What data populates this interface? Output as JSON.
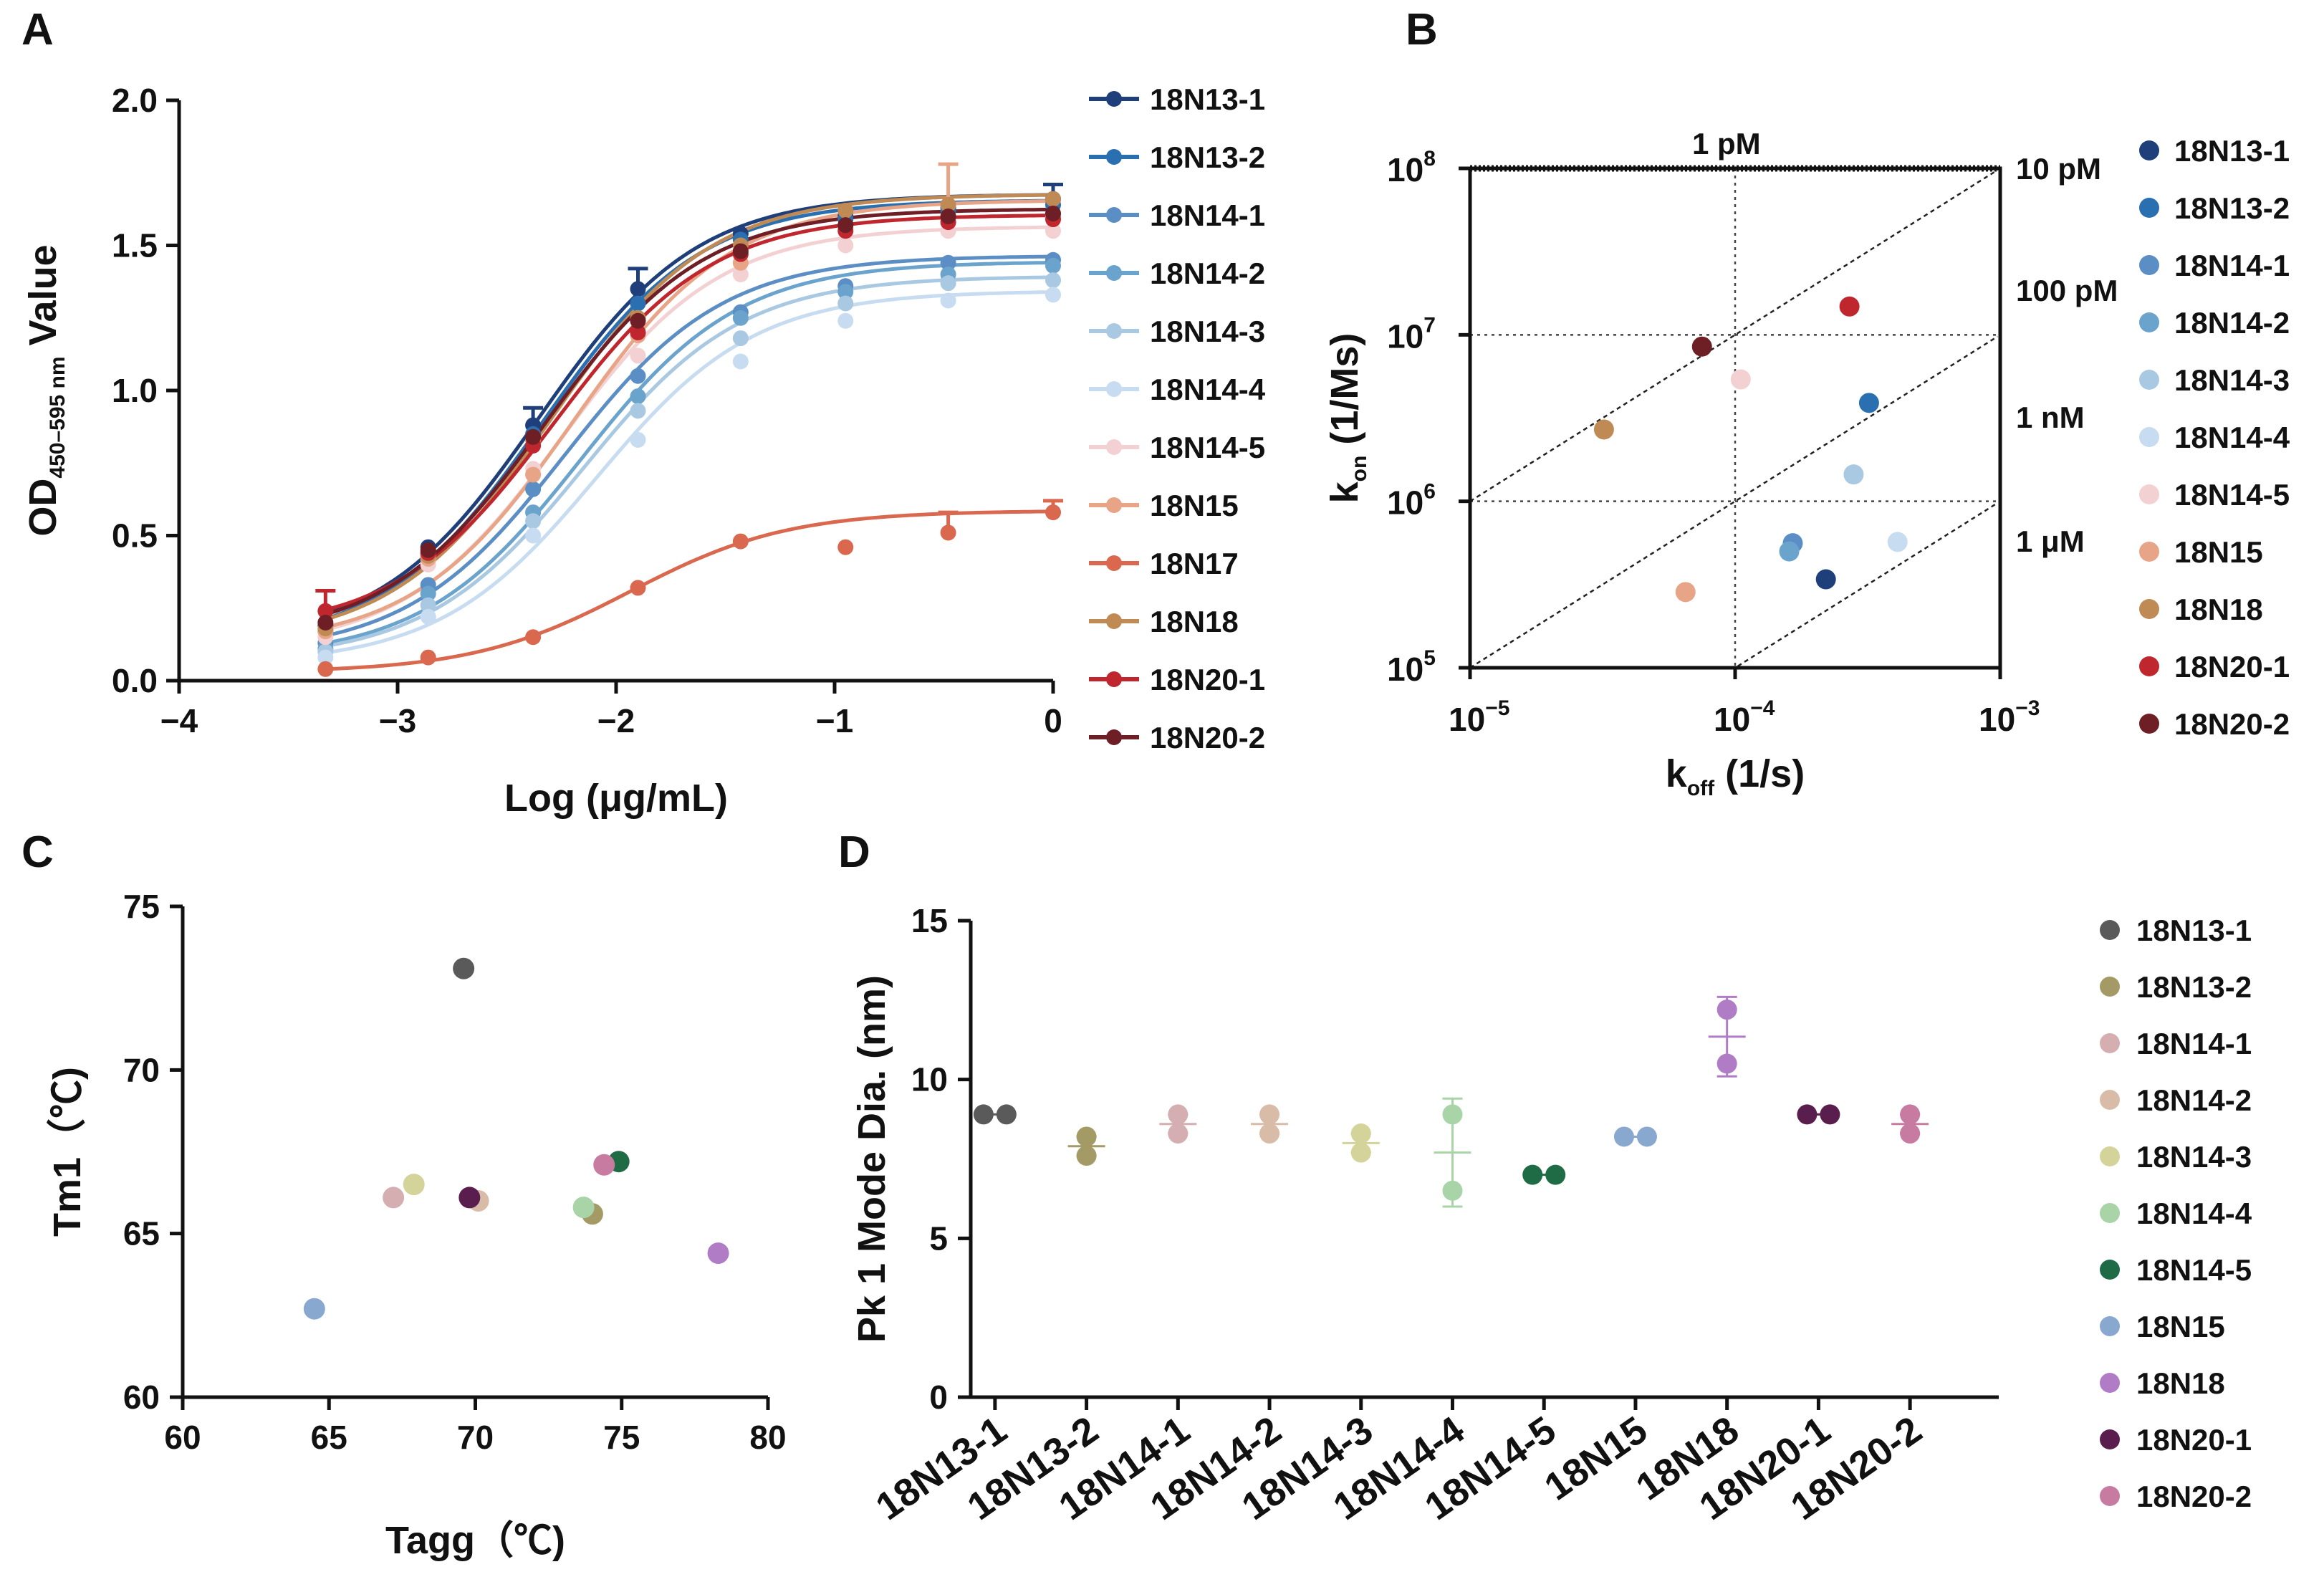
{
  "chart_data": [
    {
      "panel": "A",
      "type": "line",
      "xlabel": "Log (μg/mL)",
      "ylabel_prefix": "OD",
      "ylabel_sub": "450–595 nm",
      "ylabel_suffix": " Value",
      "xlim": [
        -4,
        0
      ],
      "ylim": [
        0,
        2
      ],
      "xticks": [
        -4,
        -3,
        -2,
        -1,
        0
      ],
      "xtick_labels": [
        "−4",
        "−3",
        "−2",
        "−1",
        "0"
      ],
      "yticks": [
        0,
        0.5,
        1.0,
        1.5,
        2.0
      ],
      "ytick_labels": [
        "0.0",
        "0.5",
        "1.0",
        "1.5",
        "2.0"
      ],
      "x": [
        -3.33,
        -2.86,
        -2.38,
        -1.9,
        -1.43,
        -0.95,
        -0.48,
        0
      ],
      "series": [
        {
          "name": "18N13-1",
          "color": "#1f3f7a",
          "values": [
            0.19,
            0.46,
            0.88,
            1.35,
            1.54,
            1.6,
            1.63,
            1.66
          ]
        },
        {
          "name": "18N13-2",
          "color": "#2a6fb0",
          "values": [
            0.17,
            0.44,
            0.85,
            1.3,
            1.52,
            1.59,
            1.62,
            1.64
          ]
        },
        {
          "name": "18N14-1",
          "color": "#5b8ec4",
          "values": [
            0.13,
            0.33,
            0.66,
            1.05,
            1.27,
            1.36,
            1.44,
            1.45
          ]
        },
        {
          "name": "18N14-2",
          "color": "#6aa3cc",
          "values": [
            0.11,
            0.3,
            0.58,
            0.98,
            1.25,
            1.34,
            1.4,
            1.43
          ]
        },
        {
          "name": "18N14-3",
          "color": "#a9c8e2",
          "values": [
            0.1,
            0.26,
            0.55,
            0.93,
            1.18,
            1.3,
            1.37,
            1.38
          ]
        },
        {
          "name": "18N14-4",
          "color": "#c7dcf0",
          "values": [
            0.08,
            0.22,
            0.5,
            0.83,
            1.1,
            1.24,
            1.31,
            1.33
          ]
        },
        {
          "name": "18N14-5",
          "color": "#f3d1d3",
          "values": [
            0.15,
            0.4,
            0.73,
            1.12,
            1.4,
            1.5,
            1.55,
            1.55
          ]
        },
        {
          "name": "18N15",
          "color": "#e8a487",
          "values": [
            0.17,
            0.42,
            0.71,
            1.19,
            1.44,
            1.56,
            1.64,
            1.6
          ]
        },
        {
          "name": "18N17",
          "color": "#d9684e",
          "values": [
            0.04,
            0.08,
            0.15,
            0.32,
            0.48,
            0.46,
            0.51,
            0.58
          ]
        },
        {
          "name": "18N18",
          "color": "#c08a55",
          "values": [
            0.18,
            0.43,
            0.83,
            1.25,
            1.5,
            1.62,
            1.64,
            1.66
          ]
        },
        {
          "name": "18N20-1",
          "color": "#c0262d",
          "values": [
            0.24,
            0.44,
            0.81,
            1.2,
            1.47,
            1.55,
            1.58,
            1.59
          ]
        },
        {
          "name": "18N20-2",
          "color": "#6e1f26",
          "values": [
            0.2,
            0.45,
            0.84,
            1.24,
            1.48,
            1.57,
            1.6,
            1.61
          ]
        }
      ],
      "error_bars": [
        {
          "series": "18N13-1",
          "x": -1.9,
          "upper": 1.42
        },
        {
          "series": "18N13-1",
          "x": -2.38,
          "upper": 0.94
        },
        {
          "series": "18N13-1",
          "x": 0,
          "upper": 1.71
        },
        {
          "series": "18N15",
          "x": -0.48,
          "upper": 1.78
        },
        {
          "series": "18N17",
          "x": -0.48,
          "upper": 0.58
        },
        {
          "series": "18N17",
          "x": 0,
          "upper": 0.62
        },
        {
          "series": "18N20-1",
          "x": -3.33,
          "upper": 0.31
        }
      ]
    },
    {
      "panel": "B",
      "type": "scatter",
      "xlabel_main": "k",
      "xlabel_sub": "off",
      "xlabel_unit": " (1/s)",
      "ylabel_main": "k",
      "ylabel_sub": "on",
      "ylabel_unit": " (1/Ms)",
      "xscale": "log",
      "yscale": "log",
      "xlim": [
        1e-05,
        0.001
      ],
      "ylim": [
        100000.0,
        100000000.0
      ],
      "xtick_exps": [
        "−5",
        "−4",
        "−3"
      ],
      "ytick_exps": [
        "5",
        "6",
        "7",
        "8"
      ],
      "tick_base": "10",
      "kd_labels": [
        "1 pM",
        "10 pM",
        "100 pM",
        "1 nM",
        "1 μM"
      ],
      "points": [
        {
          "name": "18N13-1",
          "color": "#1f3f7a",
          "koff": 0.00022,
          "kon": 340000
        },
        {
          "name": "18N13-2",
          "color": "#2a6fb0",
          "koff": 0.00032,
          "kon": 3900000
        },
        {
          "name": "18N14-1",
          "color": "#5b8ec4",
          "koff": 0.000165,
          "kon": 560000
        },
        {
          "name": "18N14-2",
          "color": "#6aa3cc",
          "koff": 0.00016,
          "kon": 500000
        },
        {
          "name": "18N14-3",
          "color": "#a9c8e2",
          "koff": 0.00028,
          "kon": 1450000
        },
        {
          "name": "18N14-4",
          "color": "#c7dcf0",
          "koff": 0.00041,
          "kon": 570000
        },
        {
          "name": "18N14-5",
          "color": "#f3d1d3",
          "koff": 0.000105,
          "kon": 5400000
        },
        {
          "name": "18N15",
          "color": "#e8a487",
          "koff": 6.5e-05,
          "kon": 285000
        },
        {
          "name": "18N18",
          "color": "#c08a55",
          "koff": 3.2e-05,
          "kon": 2700000
        },
        {
          "name": "18N20-1",
          "color": "#c0262d",
          "koff": 0.00027,
          "kon": 14800000
        },
        {
          "name": "18N20-2",
          "color": "#6e1f26",
          "koff": 7.5e-05,
          "kon": 8500000
        }
      ]
    },
    {
      "panel": "C",
      "type": "scatter",
      "xlabel": "Tagg（℃)",
      "ylabel": "Tm1（℃)",
      "xlim": [
        60,
        80
      ],
      "ylim": [
        60,
        75
      ],
      "xticks": [
        60,
        65,
        70,
        75,
        80
      ],
      "yticks": [
        60,
        65,
        70,
        75
      ],
      "points": [
        {
          "name": "18N13-1",
          "color": "#5a5a5a",
          "x": 69.6,
          "y": 73.1
        },
        {
          "name": "18N13-2",
          "color": "#a49a66",
          "x": 74.0,
          "y": 65.6
        },
        {
          "name": "18N14-1",
          "color": "#d4aeb0",
          "x": 67.2,
          "y": 66.1
        },
        {
          "name": "18N14-2",
          "color": "#d9bca8",
          "x": 70.1,
          "y": 66.0
        },
        {
          "name": "18N14-3",
          "color": "#d4d49a",
          "x": 67.9,
          "y": 66.5
        },
        {
          "name": "18N14-4",
          "color": "#a8d4a8",
          "x": 73.7,
          "y": 65.8
        },
        {
          "name": "18N14-5",
          "color": "#1f6b45",
          "x": 74.9,
          "y": 67.2
        },
        {
          "name": "18N15",
          "color": "#88a8d0",
          "x": 64.5,
          "y": 62.7
        },
        {
          "name": "18N18",
          "color": "#b07cc6",
          "x": 78.3,
          "y": 64.4
        },
        {
          "name": "18N20-1",
          "color": "#5a1e4e",
          "x": 69.8,
          "y": 66.1
        },
        {
          "name": "18N20-2",
          "color": "#c87ba0",
          "x": 74.4,
          "y": 67.1
        }
      ]
    },
    {
      "panel": "D",
      "type": "scatter",
      "ylabel": "Pk 1 Mode Dia. (nm)",
      "ylim": [
        0,
        15
      ],
      "yticks": [
        0,
        5,
        10,
        15
      ],
      "categories": [
        "18N13-1",
        "18N13-2",
        "18N14-1",
        "18N14-2",
        "18N14-3",
        "18N14-4",
        "18N14-5",
        "18N15",
        "18N18",
        "18N20-1",
        "18N20-2"
      ],
      "colors": [
        "#5a5a5a",
        "#a49a66",
        "#d4aeb0",
        "#d9bca8",
        "#d4d49a",
        "#a8d4a8",
        "#1f6b45",
        "#88a8d0",
        "#b07cc6",
        "#5a1e4e",
        "#c87ba0"
      ],
      "replicates": [
        [
          8.9,
          8.9
        ],
        [
          8.2,
          7.6
        ],
        [
          8.9,
          8.3
        ],
        [
          8.9,
          8.3
        ],
        [
          8.3,
          7.7
        ],
        [
          8.9,
          6.5
        ],
        [
          7.0,
          7.0
        ],
        [
          8.2,
          8.2
        ],
        [
          12.2,
          10.5
        ],
        [
          8.9,
          8.9
        ],
        [
          8.9,
          8.3
        ]
      ],
      "means": [
        8.9,
        7.9,
        8.6,
        8.6,
        8.0,
        7.7,
        7.0,
        8.2,
        11.35,
        8.9,
        8.6
      ],
      "err": [
        0,
        0.3,
        0.3,
        0.3,
        0.3,
        1.7,
        0,
        0,
        1.25,
        0,
        0.3
      ]
    }
  ],
  "panel_letters": [
    "A",
    "B",
    "C",
    "D"
  ]
}
